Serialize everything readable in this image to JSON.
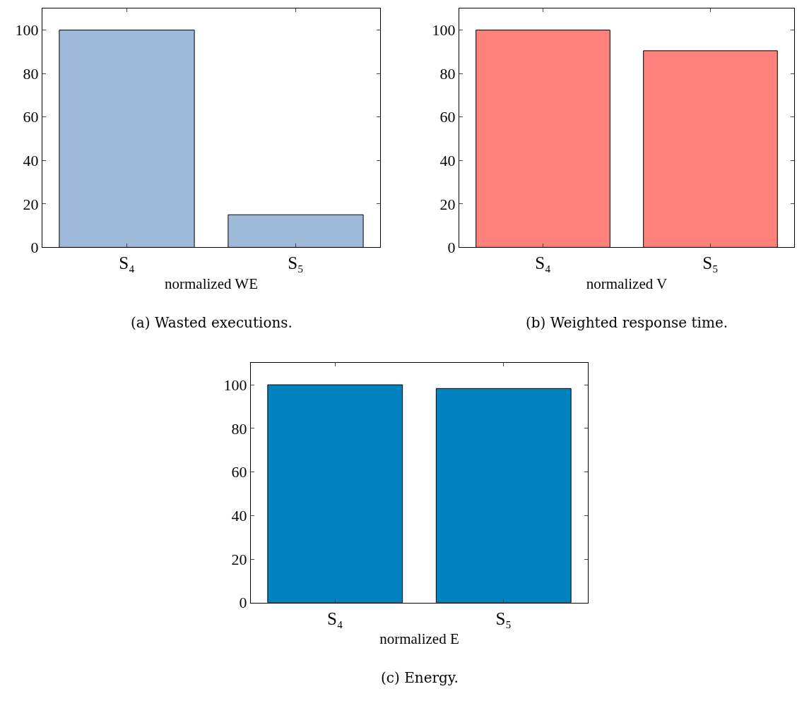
{
  "chart_data": [
    {
      "type": "bar",
      "title": "(a) Wasted executions.",
      "xlabel": "normalized WE",
      "categories": [
        "S₄",
        "S₅"
      ],
      "values": [
        100,
        15
      ],
      "color": "#9fbad9",
      "ylim": [
        0,
        110
      ],
      "yticks": [
        0,
        20,
        40,
        60,
        80,
        100
      ]
    },
    {
      "type": "bar",
      "title": "(b) Weighted response time.",
      "xlabel": "normalized V",
      "categories": [
        "S₄",
        "S₅"
      ],
      "values": [
        100,
        90.5
      ],
      "color": "#ff817b",
      "ylim": [
        0,
        110
      ],
      "yticks": [
        0,
        20,
        40,
        60,
        80,
        100
      ]
    },
    {
      "type": "bar",
      "title": "(c) Energy.",
      "xlabel": "normalized E",
      "categories": [
        "S₄",
        "S₅"
      ],
      "values": [
        100,
        98.3
      ],
      "color": "#0082bf",
      "ylim": [
        0,
        110
      ],
      "yticks": [
        0,
        20,
        40,
        60,
        80,
        100
      ]
    }
  ]
}
